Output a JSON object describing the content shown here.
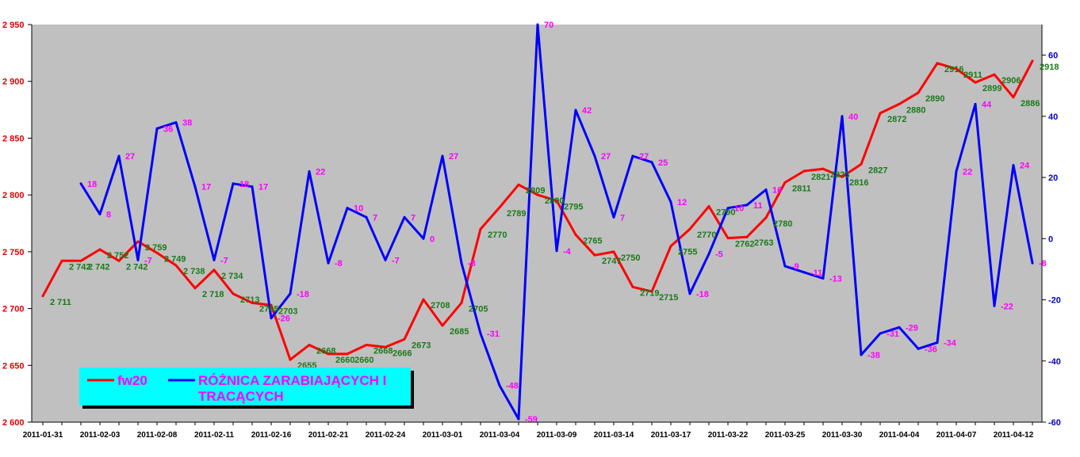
{
  "chart_data": {
    "type": "line",
    "title": "",
    "xlabel": "",
    "ylabel": "",
    "x_tick_labels": [
      "2011-01-31",
      "2011-02-03",
      "2011-02-08",
      "2011-02-11",
      "2011-02-16",
      "2011-02-21",
      "2011-02-24",
      "2011-03-01",
      "2011-03-04",
      "2011-03-09",
      "2011-03-14",
      "2011-03-17",
      "2011-03-22",
      "2011-03-25",
      "2011-03-30",
      "2011-04-04",
      "2011-04-07",
      "2011-04-12"
    ],
    "ylim_left": [
      2600,
      2950
    ],
    "y_ticks_left": [
      2600,
      2650,
      2700,
      2750,
      2800,
      2850,
      2900,
      2950
    ],
    "y_tick_labels_left": [
      "2 600",
      "2 650",
      "2 700",
      "2 750",
      "2 800",
      "2 850",
      "2 900",
      "2 950"
    ],
    "ylim_right": [
      -60,
      70
    ],
    "y_ticks_right": [
      -60,
      -40,
      -20,
      0,
      20,
      40,
      60
    ],
    "y_tick_labels_right": [
      "-60",
      "-40",
      "-20",
      "0",
      "20",
      "40",
      "60"
    ],
    "grid": false,
    "legend_position": "bottom-left",
    "background_color": "#c0c0c0",
    "legend_background": "#00ffff",
    "series": [
      {
        "name": "fw20",
        "axis": "left",
        "color": "#ff0000",
        "values": [
          2711,
          2742,
          2742,
          2752,
          2742,
          2759,
          2749,
          2738,
          2718,
          2734,
          2713,
          2705,
          2703,
          2655,
          2668,
          2660,
          2660,
          2668,
          2666,
          2673,
          2708,
          2685,
          2705,
          2770,
          2789,
          2809,
          2800,
          2795,
          2765,
          2747,
          2750,
          2719,
          2715,
          2755,
          2770,
          2790,
          2762,
          2763,
          2780,
          2811,
          2821,
          2823,
          2816,
          2827,
          2872,
          2880,
          2890,
          2916,
          2911,
          2899,
          2906,
          2886,
          2918
        ],
        "labels": [
          "2 711",
          "2 742",
          "2 742",
          "2 752",
          "2 742",
          "2 759",
          "2 749",
          "2 738",
          "2 718",
          "2 734",
          "2713",
          "2705",
          "2703",
          "2655",
          "2668",
          "2660",
          "2660",
          "2668",
          "2666",
          "2673",
          "2708",
          "2685",
          "2705",
          "2770",
          "2789",
          "2809",
          "2800",
          "2795",
          "2765",
          "2747",
          "2750",
          "2719",
          "2715",
          "2755",
          "2770",
          "2790",
          "2762",
          "2763",
          "2780",
          "2811",
          "2821",
          "2823",
          "2816",
          "2827",
          "2872",
          "2880",
          "2890",
          "2916",
          "2911",
          "2899",
          "2906",
          "2886",
          "2918"
        ]
      },
      {
        "name": "RÓŻNICA ZARABIAJĄCYCH I TRACĄCYCH",
        "axis": "right",
        "color": "#0000ff",
        "start_index": 2,
        "values": [
          18,
          8,
          27,
          -7,
          36,
          38,
          17,
          -7,
          18,
          17,
          -26,
          -18,
          22,
          -8,
          10,
          7,
          -7,
          7,
          0,
          27,
          -8,
          -31,
          -48,
          -59,
          70,
          -4,
          42,
          27,
          7,
          27,
          25,
          12,
          -18,
          -5,
          10,
          11,
          16,
          -9,
          -11,
          -13,
          40,
          -38,
          -31,
          -29,
          -36,
          -34,
          22,
          44,
          -22,
          24,
          -8
        ],
        "labels": [
          "18",
          "8",
          "27",
          "-7",
          "36",
          "38",
          "17",
          "-7",
          "18",
          "17",
          "-26",
          "-18",
          "22",
          "-8",
          "10",
          "7",
          "-7",
          "7",
          "0",
          "27",
          "-8",
          "-31",
          "-48",
          "-59",
          "70",
          "-4",
          "42",
          "27",
          "7",
          "27",
          "25",
          "12",
          "-18",
          "-5",
          "10",
          "11",
          "16",
          "-9",
          "-11",
          "-13",
          "40",
          "-38",
          "-31",
          "-29",
          "-36",
          "-34",
          "22",
          "44",
          "-22",
          "24",
          "-8"
        ]
      }
    ]
  }
}
